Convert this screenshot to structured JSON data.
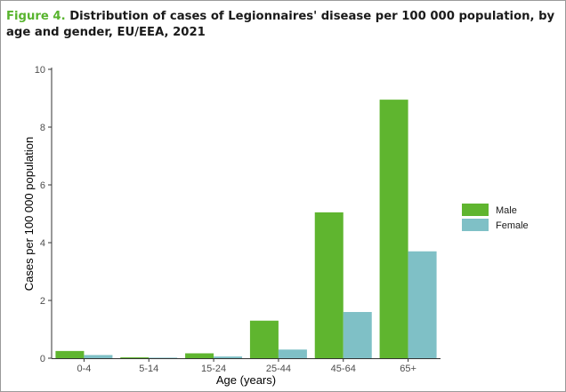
{
  "caption": {
    "figure_label": "Figure 4.",
    "title": "Distribution of cases of Legionnaires' disease per 100 000 population, by age and gender, EU/EEA, 2021"
  },
  "colors": {
    "male": "#5fb52f",
    "female": "#7fc0c6",
    "figure_label": "#58b42e"
  },
  "chart_data": {
    "type": "bar",
    "title": "Distribution of cases of Legionnaires' disease per 100 000 population, by age and gender, EU/EEA, 2021",
    "xlabel": "Age (years)",
    "ylabel": "Cases per 100 000 population",
    "categories": [
      "0-4",
      "5-14",
      "15-24",
      "25-44",
      "45-64",
      "65+"
    ],
    "series": [
      {
        "name": "Male",
        "color": "#5fb52f",
        "values": [
          0.25,
          0.03,
          0.17,
          1.3,
          5.05,
          8.95
        ]
      },
      {
        "name": "Female",
        "color": "#7fc0c6",
        "values": [
          0.11,
          0.02,
          0.06,
          0.3,
          1.6,
          3.7
        ]
      }
    ],
    "ylim": [
      0,
      10
    ],
    "yticks": [
      0,
      2,
      4,
      6,
      8,
      10
    ],
    "grid": false,
    "legend_position": "right"
  }
}
